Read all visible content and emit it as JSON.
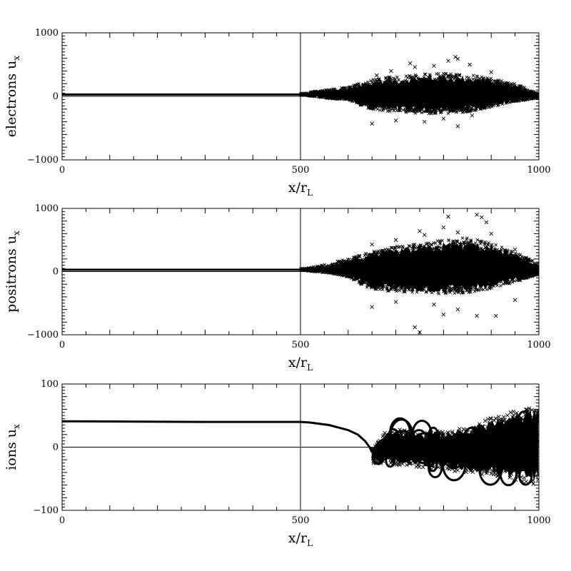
{
  "chart_data": [
    {
      "type": "scatter",
      "panel": "electrons",
      "ylabel": "electrons u",
      "ylabel_sub": "x",
      "xlabel": "x/r",
      "xlabel_sub": "L",
      "xlim": [
        0,
        1000
      ],
      "ylim": [
        -1000,
        1000
      ],
      "xticks": [
        0,
        500,
        1000
      ],
      "yticks": [
        -1000,
        0,
        1000
      ],
      "x_tick_labels": [
        "0",
        "500",
        "1000"
      ],
      "y_tick_labels": [
        "−1000",
        "0",
        "1000"
      ],
      "reference_lines": {
        "vertical_x": 500,
        "horizontal_y": 0
      },
      "marker": "x",
      "upstream_flow_level": 40,
      "profile_x": [
        0,
        500,
        520,
        560,
        600,
        650,
        700,
        750,
        800,
        850,
        900,
        950,
        1000
      ],
      "upper_envelope": [
        42,
        44,
        70,
        100,
        140,
        260,
        300,
        330,
        350,
        330,
        270,
        190,
        50
      ],
      "lower_envelope": [
        38,
        36,
        10,
        -30,
        -60,
        -200,
        -230,
        -260,
        -260,
        -240,
        -160,
        -80,
        -20
      ],
      "outliers": [
        {
          "x": 660,
          "y": 330
        },
        {
          "x": 690,
          "y": 400
        },
        {
          "x": 730,
          "y": 520
        },
        {
          "x": 740,
          "y": 460
        },
        {
          "x": 780,
          "y": 480
        },
        {
          "x": 810,
          "y": 560
        },
        {
          "x": 825,
          "y": 620
        },
        {
          "x": 830,
          "y": 590
        },
        {
          "x": 855,
          "y": 500
        },
        {
          "x": 900,
          "y": 380
        },
        {
          "x": 650,
          "y": -430
        },
        {
          "x": 700,
          "y": -380
        },
        {
          "x": 760,
          "y": -400
        },
        {
          "x": 800,
          "y": -350
        },
        {
          "x": 830,
          "y": -470
        },
        {
          "x": 860,
          "y": -300
        }
      ]
    },
    {
      "type": "scatter",
      "panel": "positrons",
      "ylabel": "positrons u",
      "ylabel_sub": "x",
      "xlabel": "x/r",
      "xlabel_sub": "L",
      "xlim": [
        0,
        1000
      ],
      "ylim": [
        -1000,
        1000
      ],
      "xticks": [
        0,
        500,
        1000
      ],
      "yticks": [
        -1000,
        0,
        1000
      ],
      "x_tick_labels": [
        "0",
        "500",
        "1000"
      ],
      "y_tick_labels": [
        "−1000",
        "0",
        "1000"
      ],
      "reference_lines": {
        "vertical_x": 500,
        "horizontal_y": 0
      },
      "marker": "x",
      "upstream_flow_level": 40,
      "profile_x": [
        0,
        500,
        520,
        560,
        600,
        650,
        700,
        750,
        800,
        850,
        900,
        950,
        1000
      ],
      "upper_envelope": [
        44,
        46,
        60,
        120,
        200,
        300,
        380,
        420,
        480,
        520,
        430,
        300,
        120
      ],
      "lower_envelope": [
        36,
        34,
        10,
        -20,
        -80,
        -280,
        -300,
        -320,
        -340,
        -320,
        -260,
        -160,
        -40
      ],
      "outliers": [
        {
          "x": 650,
          "y": 430
        },
        {
          "x": 700,
          "y": 500
        },
        {
          "x": 750,
          "y": 640
        },
        {
          "x": 760,
          "y": 580
        },
        {
          "x": 800,
          "y": 700
        },
        {
          "x": 810,
          "y": 870
        },
        {
          "x": 830,
          "y": 620
        },
        {
          "x": 870,
          "y": 900
        },
        {
          "x": 880,
          "y": 860
        },
        {
          "x": 890,
          "y": 780
        },
        {
          "x": 900,
          "y": 600
        },
        {
          "x": 950,
          "y": 350
        },
        {
          "x": 650,
          "y": -560
        },
        {
          "x": 700,
          "y": -480
        },
        {
          "x": 740,
          "y": -880
        },
        {
          "x": 750,
          "y": -960
        },
        {
          "x": 780,
          "y": -520
        },
        {
          "x": 800,
          "y": -680
        },
        {
          "x": 830,
          "y": -600
        },
        {
          "x": 870,
          "y": -700
        },
        {
          "x": 910,
          "y": -700
        },
        {
          "x": 950,
          "y": -450
        }
      ]
    },
    {
      "type": "scatter",
      "panel": "ions",
      "ylabel": "ions u",
      "ylabel_sub": "x",
      "xlabel": "x/r",
      "xlabel_sub": "L",
      "xlim": [
        0,
        1000
      ],
      "ylim": [
        -100,
        100
      ],
      "xticks": [
        0,
        500,
        1000
      ],
      "yticks": [
        -100,
        0,
        100
      ],
      "x_tick_labels": [
        "0",
        "500",
        "1000"
      ],
      "y_tick_labels": [
        "−100",
        "0",
        "100"
      ],
      "reference_lines": {
        "vertical_x": 500,
        "horizontal_y": 0
      },
      "marker": "x",
      "upstream_flow_level": 40,
      "deceleration_curve": [
        {
          "x": 0,
          "y": 41
        },
        {
          "x": 300,
          "y": 40
        },
        {
          "x": 500,
          "y": 40
        },
        {
          "x": 520,
          "y": 39
        },
        {
          "x": 560,
          "y": 35
        },
        {
          "x": 600,
          "y": 27
        },
        {
          "x": 620,
          "y": 20
        },
        {
          "x": 635,
          "y": 10
        },
        {
          "x": 645,
          "y": 0
        },
        {
          "x": 650,
          "y": -8
        }
      ],
      "profile_x": [
        650,
        680,
        700,
        750,
        800,
        850,
        900,
        950,
        1000
      ],
      "upper_envelope": [
        -5,
        25,
        28,
        22,
        25,
        30,
        45,
        55,
        62
      ],
      "lower_envelope": [
        -25,
        -25,
        -28,
        -30,
        -35,
        -40,
        -45,
        -50,
        -58
      ]
    }
  ]
}
